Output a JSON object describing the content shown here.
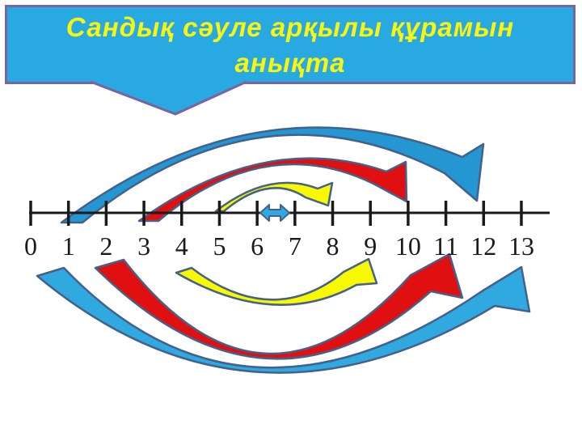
{
  "slide": {
    "callout": {
      "line1": "Сандық сәуле арқылы құрамын",
      "line2": "анықта"
    },
    "number_line": {
      "labels": [
        "0",
        "1",
        "2",
        "3",
        "4",
        "5",
        "6",
        "7",
        "8",
        "9",
        "10",
        "11",
        "12",
        "13"
      ],
      "min": 0,
      "max": 13
    },
    "arcs_above": [
      {
        "name": "curved-arrow-1-to-12",
        "from": 1,
        "to": 12,
        "color": "blue"
      },
      {
        "name": "curved-arrow-3-to-10",
        "from": 3,
        "to": 10,
        "color": "red"
      },
      {
        "name": "curved-arrow-5-to-8",
        "from": 5,
        "to": 8,
        "color": "yellow"
      },
      {
        "name": "double-arrow-6-to-7",
        "from": 6,
        "to": 7,
        "color": "blue"
      }
    ],
    "arcs_below": [
      {
        "name": "curved-arrow-0-to-13",
        "from": 0,
        "to": 13,
        "color": "blue"
      },
      {
        "name": "curved-arrow-2-to-11",
        "from": 2,
        "to": 11,
        "color": "red"
      },
      {
        "name": "curved-arrow-4-to-9",
        "from": 4,
        "to": 9,
        "color": "yellow"
      }
    ],
    "colors": {
      "background": "#FFFFFF",
      "ink": "#1A1A1A",
      "outline": "#44618C",
      "blue": "#2496D2",
      "blue_bright": "#30A8E0",
      "red": "#E01010",
      "yellow": "#F8F800",
      "callout_fill": "#29A9E2",
      "callout_border": "#7A63A0",
      "callout_text": "#F8F512"
    }
  }
}
